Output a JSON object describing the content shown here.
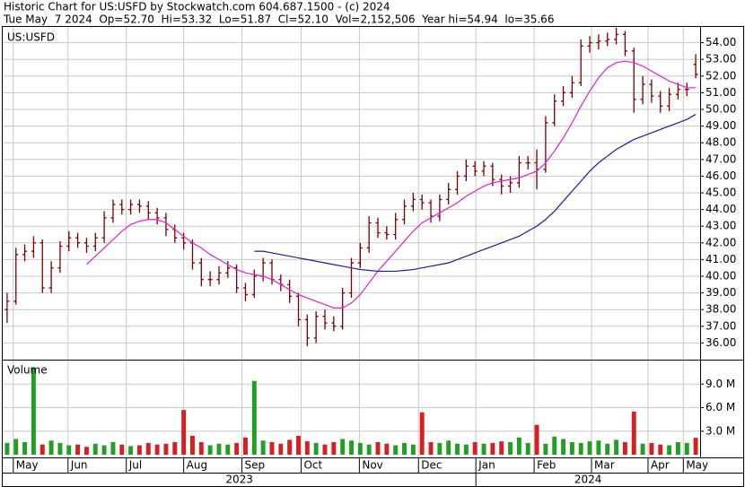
{
  "chart_data": [
    {
      "type": "ohlc",
      "title": "Historic Chart for US:USFD by Stockwatch.com 604.687.1500 - (c) 2024",
      "subtitle": "Tue May  7 2024  Op=52.70  Hi=53.32  Lo=51.87  Cl=52.10  Vol=2,152,506  Year hi=54.94  lo=35.66",
      "label": "US:USFD",
      "color": "#7a0000",
      "open": [
        38.0,
        38.5,
        41.3,
        41.5,
        42.0,
        39.3,
        40.5,
        41.8,
        42.3,
        42.0,
        41.8,
        42.3,
        43.5,
        44.3,
        44.0,
        44.3,
        44.2,
        43.8,
        43.5,
        42.8,
        42.3,
        42.0,
        40.8,
        39.8,
        39.8,
        40.2,
        40.5,
        39.3,
        38.9,
        40.0,
        40.8,
        39.8,
        39.5,
        38.8,
        37.4,
        36.3,
        37.6,
        37.2,
        37.0,
        39.0,
        40.8,
        41.7,
        43.2,
        42.6,
        42.5,
        43.4,
        44.2,
        44.6,
        44.4,
        43.6,
        44.6,
        45.2,
        46.0,
        46.6,
        46.3,
        46.6,
        45.8,
        45.4,
        45.6,
        46.8,
        46.8,
        46.4,
        49.2,
        50.5,
        51.0,
        51.6,
        53.8,
        54.0,
        54.1,
        54.2,
        54.5,
        53.5,
        50.6,
        51.5,
        50.8,
        50.2,
        50.9,
        51.2,
        52.7
      ],
      "high": [
        39.0,
        41.7,
        41.9,
        42.4,
        42.2,
        40.9,
        42.1,
        42.7,
        42.6,
        42.3,
        42.6,
        43.9,
        44.6,
        44.6,
        44.6,
        44.6,
        44.5,
        44.1,
        43.8,
        43.1,
        42.6,
        42.2,
        41.1,
        40.3,
        40.6,
        40.9,
        40.7,
        39.6,
        40.4,
        41.1,
        41.0,
        40.1,
        39.8,
        39.0,
        37.7,
        37.9,
        38.0,
        37.6,
        39.3,
        41.1,
        42.0,
        43.6,
        43.5,
        43.0,
        43.8,
        44.6,
        45.0,
        44.9,
        44.6,
        44.9,
        45.6,
        46.3,
        47.0,
        46.9,
        46.9,
        46.8,
        46.1,
        46.0,
        47.2,
        47.2,
        47.6,
        49.6,
        50.9,
        51.4,
        52.0,
        54.2,
        54.4,
        54.5,
        54.6,
        54.9,
        54.7,
        53.7,
        52.0,
        51.8,
        51.1,
        51.3,
        51.6,
        51.6,
        53.32
      ],
      "low": [
        37.2,
        38.3,
        40.9,
        41.1,
        39.0,
        39.0,
        40.2,
        41.5,
        41.7,
        41.4,
        41.5,
        42.0,
        43.2,
        43.7,
        43.7,
        43.8,
        43.4,
        43.1,
        42.4,
        42.0,
        41.6,
        40.4,
        39.4,
        39.4,
        39.5,
        39.9,
        39.0,
        38.5,
        38.7,
        39.7,
        39.5,
        39.1,
        38.4,
        37.0,
        35.8,
        36.0,
        36.8,
        36.7,
        36.8,
        38.7,
        40.5,
        41.4,
        42.3,
        42.2,
        42.2,
        43.1,
        43.9,
        44.0,
        43.2,
        43.3,
        44.3,
        44.9,
        45.7,
        46.0,
        46.0,
        45.4,
        44.9,
        45.0,
        45.3,
        46.4,
        45.2,
        46.2,
        49.0,
        50.2,
        50.7,
        51.4,
        53.4,
        53.6,
        53.8,
        53.9,
        53.2,
        49.8,
        50.3,
        50.4,
        49.8,
        49.9,
        50.6,
        50.8,
        51.87
      ],
      "close": [
        38.5,
        41.3,
        41.5,
        42.0,
        39.3,
        40.5,
        41.8,
        42.3,
        42.0,
        41.8,
        42.3,
        43.5,
        44.3,
        44.0,
        44.3,
        44.2,
        43.8,
        43.5,
        42.8,
        42.3,
        42.0,
        40.8,
        39.8,
        39.8,
        40.2,
        40.5,
        39.3,
        38.9,
        40.0,
        40.8,
        39.8,
        39.5,
        38.8,
        37.4,
        36.3,
        37.6,
        37.2,
        37.0,
        39.0,
        40.8,
        41.7,
        43.2,
        42.6,
        42.5,
        43.4,
        44.2,
        44.6,
        44.4,
        43.6,
        44.6,
        45.2,
        46.0,
        46.6,
        46.3,
        46.6,
        45.8,
        45.4,
        45.6,
        46.8,
        46.8,
        46.4,
        49.2,
        50.5,
        51.0,
        51.6,
        53.8,
        54.0,
        54.1,
        54.2,
        54.5,
        53.5,
        50.6,
        51.5,
        50.8,
        50.2,
        50.9,
        51.2,
        51.2,
        52.1
      ],
      "series": [
        {
          "color": "#e020d0",
          "values": [
            null,
            null,
            null,
            null,
            null,
            null,
            null,
            null,
            null,
            40.7,
            41.2,
            41.7,
            42.2,
            42.7,
            43.1,
            43.3,
            43.4,
            43.4,
            43.2,
            42.8,
            42.4,
            42.0,
            41.7,
            41.3,
            41.0,
            40.7,
            40.4,
            40.2,
            40.1,
            40.0,
            39.8,
            39.5,
            39.2,
            38.9,
            38.7,
            38.5,
            38.3,
            38.1,
            38.1,
            38.4,
            38.9,
            39.6,
            40.3,
            40.9,
            41.5,
            42.1,
            42.7,
            43.2,
            43.5,
            43.8,
            44.1,
            44.4,
            44.8,
            45.1,
            45.4,
            45.6,
            45.7,
            45.8,
            45.9,
            46.1,
            46.3,
            46.8,
            47.5,
            48.3,
            49.2,
            50.2,
            51.1,
            51.9,
            52.5,
            52.8,
            52.9,
            52.8,
            52.6,
            52.3,
            52.0,
            51.7,
            51.5,
            51.3,
            51.3
          ]
        },
        {
          "color": "#1c1c9c",
          "values": [
            null,
            null,
            null,
            null,
            null,
            null,
            null,
            null,
            null,
            null,
            null,
            null,
            null,
            null,
            null,
            null,
            null,
            null,
            null,
            null,
            null,
            null,
            null,
            null,
            null,
            null,
            null,
            null,
            41.5,
            41.5,
            41.4,
            41.3,
            41.2,
            41.1,
            41.0,
            40.9,
            40.8,
            40.7,
            40.6,
            40.5,
            40.4,
            40.35,
            40.3,
            40.3,
            40.3,
            40.35,
            40.4,
            40.5,
            40.6,
            40.7,
            40.8,
            41.0,
            41.2,
            41.4,
            41.6,
            41.8,
            42.0,
            42.2,
            42.4,
            42.7,
            43.0,
            43.4,
            43.9,
            44.5,
            45.1,
            45.7,
            46.3,
            46.8,
            47.2,
            47.6,
            47.9,
            48.2,
            48.4,
            48.6,
            48.8,
            49.0,
            49.2,
            49.4,
            49.7
          ]
        }
      ],
      "xlim": [
        -0.5,
        78.5
      ],
      "xticks": [
        {
          "value": 0.7,
          "label": "May"
        },
        {
          "value": 6.9,
          "label": "Jun"
        },
        {
          "value": 13.5,
          "label": "Jul"
        },
        {
          "value": 20.0,
          "label": "Aug"
        },
        {
          "value": 26.6,
          "label": "Sep"
        },
        {
          "value": 33.3,
          "label": "Oct"
        },
        {
          "value": 39.9,
          "label": "Nov"
        },
        {
          "value": 46.6,
          "label": "Dec"
        },
        {
          "value": 53.1,
          "label": "Jan"
        },
        {
          "value": 59.7,
          "label": "Feb"
        },
        {
          "value": 66.2,
          "label": "Mar"
        },
        {
          "value": 72.6,
          "label": "Apr"
        },
        {
          "value": 76.6,
          "label": "May"
        }
      ],
      "years": [
        {
          "label": "2023",
          "from": -0.5,
          "to": 53.1
        },
        {
          "label": "2024",
          "from": 53.1,
          "to": 78.5
        }
      ],
      "ylim": [
        35,
        55
      ],
      "yticks": [
        {
          "value": 36,
          "label": "36.00"
        },
        {
          "value": 37,
          "label": "37.00"
        },
        {
          "value": 38,
          "label": "38.00"
        },
        {
          "value": 39,
          "label": "39.00"
        },
        {
          "value": 40,
          "label": "40.00"
        },
        {
          "value": 41,
          "label": "41.00"
        },
        {
          "value": 42,
          "label": "42.00"
        },
        {
          "value": 43,
          "label": "43.00"
        },
        {
          "value": 44,
          "label": "44.00"
        },
        {
          "value": 45,
          "label": "45.00"
        },
        {
          "value": 46,
          "label": "46.00"
        },
        {
          "value": 47,
          "label": "47.00"
        },
        {
          "value": 48,
          "label": "48.00"
        },
        {
          "value": 49,
          "label": "49.00"
        },
        {
          "value": 50,
          "label": "50.00"
        },
        {
          "value": 51,
          "label": "51.00"
        },
        {
          "value": 52,
          "label": "52.00"
        },
        {
          "value": 53,
          "label": "53.00"
        },
        {
          "value": 54,
          "label": "54.00"
        }
      ],
      "grid": true
    },
    {
      "type": "bar",
      "label": "Volume",
      "up_color": "#1fa01f",
      "down_color": "#d81e1e",
      "values": [
        1.5,
        2.0,
        1.6,
        11.1,
        1.3,
        1.8,
        1.5,
        1.2,
        1.3,
        1.0,
        1.4,
        1.2,
        1.6,
        1.3,
        1.1,
        1.2,
        1.5,
        1.3,
        1.4,
        1.6,
        5.7,
        2.4,
        1.6,
        1.2,
        1.4,
        1.3,
        1.5,
        2.2,
        9.4,
        1.8,
        1.6,
        1.4,
        1.9,
        2.4,
        1.7,
        1.5,
        1.3,
        1.6,
        2.0,
        1.8,
        1.5,
        1.3,
        1.6,
        1.4,
        1.2,
        1.5,
        1.3,
        5.4,
        1.6,
        1.5,
        1.8,
        1.4,
        1.3,
        1.6,
        1.4,
        1.5,
        1.7,
        1.6,
        2.2,
        1.5,
        3.8,
        1.4,
        2.3,
        2.0,
        1.6,
        1.5,
        1.7,
        1.8,
        1.4,
        1.9,
        1.6,
        5.5,
        1.4,
        1.5,
        1.3,
        1.2,
        1.6,
        1.5,
        2.15
      ],
      "ylim": [
        0,
        12
      ],
      "yticks": [
        {
          "value": 3,
          "label": "3.0 M"
        },
        {
          "value": 6,
          "label": "6.0 M"
        },
        {
          "value": 9,
          "label": "9.0 M"
        }
      ],
      "grid": true
    }
  ]
}
